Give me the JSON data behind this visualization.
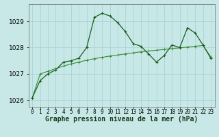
{
  "title": "Graphe pression niveau de la mer (hPa)",
  "bg_color": "#c8e8e8",
  "grid_color": "#aad4d4",
  "line1_color": "#1a5c1a",
  "line2_color": "#3a8c3a",
  "x_values": [
    0,
    1,
    2,
    3,
    4,
    5,
    6,
    7,
    8,
    9,
    10,
    11,
    12,
    13,
    14,
    15,
    16,
    17,
    18,
    19,
    20,
    21,
    22,
    23
  ],
  "line1_y": [
    1026.1,
    1026.75,
    1027.0,
    1027.15,
    1027.45,
    1027.5,
    1027.6,
    1028.0,
    1029.15,
    1029.3,
    1029.2,
    1028.95,
    1028.6,
    1028.15,
    1028.05,
    1027.75,
    1027.45,
    1027.7,
    1028.1,
    1028.0,
    1028.75,
    1028.55,
    1028.1,
    1027.6
  ],
  "line2_y": [
    1026.1,
    1027.0,
    1027.1,
    1027.2,
    1027.3,
    1027.38,
    1027.45,
    1027.52,
    1027.58,
    1027.63,
    1027.68,
    1027.72,
    1027.76,
    1027.8,
    1027.84,
    1027.87,
    1027.9,
    1027.93,
    1027.96,
    1027.99,
    1028.02,
    1028.05,
    1028.08,
    1027.65
  ],
  "ylim": [
    1025.75,
    1029.65
  ],
  "yticks": [
    1026,
    1027,
    1028,
    1029
  ],
  "xlim": [
    -0.5,
    23.5
  ],
  "xlabel_fontsize": 7,
  "ytick_fontsize": 6.5,
  "xtick_fontsize": 5.5
}
